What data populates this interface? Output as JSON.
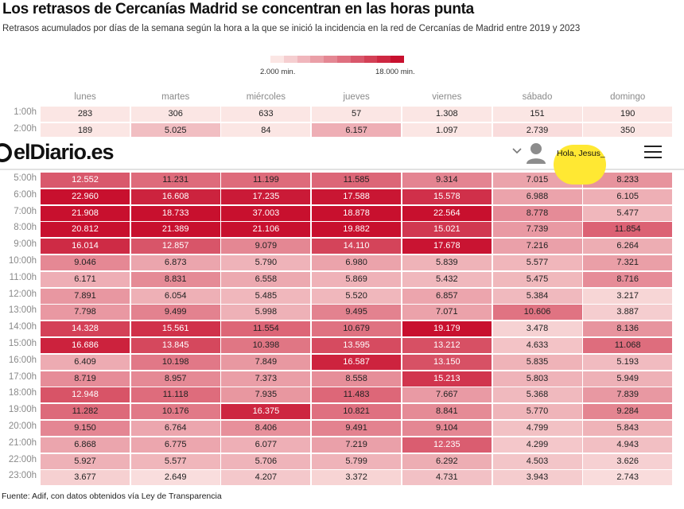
{
  "header": {
    "title": "Los retrasos de Cercanías Madrid se concentran en las horas punta",
    "subtitle": "Retrasos acumulados por días de la semana según la hora a la que se inició la incidencia en la red de Cercanías de Madrid entre 2019 y 2023"
  },
  "legend": {
    "min_label": "2.000 min.",
    "max_label": "18.000 min."
  },
  "chart_data": {
    "type": "heatmap",
    "columns": [
      "lunes",
      "martes",
      "miércoles",
      "jueves",
      "viernes",
      "sábado",
      "domingo"
    ],
    "rows": [
      {
        "hour": "1:00h",
        "values": [
          283,
          306,
          633,
          57,
          1308,
          151,
          190
        ]
      },
      {
        "hour": "2:00h",
        "values": [
          189,
          5025,
          84,
          6157,
          1097,
          2739,
          350
        ]
      },
      {
        "hour": "5:00h",
        "values": [
          12552,
          11231,
          11199,
          11585,
          9314,
          7015,
          8233
        ]
      },
      {
        "hour": "6:00h",
        "values": [
          22960,
          16608,
          17235,
          17588,
          15578,
          6988,
          6105
        ]
      },
      {
        "hour": "7:00h",
        "values": [
          21908,
          18733,
          37003,
          18878,
          22564,
          8778,
          5477
        ]
      },
      {
        "hour": "8:00h",
        "values": [
          20812,
          21389,
          21106,
          19882,
          15021,
          7739,
          11854
        ]
      },
      {
        "hour": "9:00h",
        "values": [
          16014,
          12857,
          9079,
          14110,
          17678,
          7216,
          6264
        ]
      },
      {
        "hour": "10:00h",
        "values": [
          9046,
          6873,
          5790,
          6980,
          5839,
          5577,
          7321
        ]
      },
      {
        "hour": "11:00h",
        "values": [
          6171,
          8831,
          6558,
          5869,
          5432,
          5475,
          8716
        ]
      },
      {
        "hour": "12:00h",
        "values": [
          7891,
          6054,
          5485,
          5520,
          6857,
          5384,
          3217
        ]
      },
      {
        "hour": "13:00h",
        "values": [
          7798,
          9499,
          5998,
          9495,
          7071,
          10606,
          3887
        ]
      },
      {
        "hour": "14:00h",
        "values": [
          14328,
          15561,
          11554,
          10679,
          19179,
          3478,
          8136
        ]
      },
      {
        "hour": "15:00h",
        "values": [
          16686,
          13845,
          10398,
          13595,
          13212,
          4633,
          11068
        ]
      },
      {
        "hour": "16:00h",
        "values": [
          6409,
          10198,
          7849,
          16587,
          13150,
          5835,
          5193
        ]
      },
      {
        "hour": "17:00h",
        "values": [
          8719,
          8957,
          7373,
          8558,
          15213,
          5803,
          5949
        ]
      },
      {
        "hour": "18:00h",
        "values": [
          12948,
          11118,
          7935,
          11483,
          7667,
          5368,
          7839
        ]
      },
      {
        "hour": "19:00h",
        "values": [
          11282,
          10176,
          16375,
          10821,
          8841,
          5770,
          9284
        ]
      },
      {
        "hour": "20:00h",
        "values": [
          9150,
          6764,
          8406,
          9491,
          9104,
          4799,
          5843
        ]
      },
      {
        "hour": "21:00h",
        "values": [
          6868,
          6775,
          6077,
          7219,
          12235,
          4299,
          4943
        ]
      },
      {
        "hour": "22:00h",
        "values": [
          5927,
          5577,
          5706,
          5799,
          6292,
          4503,
          3626
        ]
      },
      {
        "hour": "23:00h",
        "values": [
          3677,
          2649,
          4207,
          3372,
          4731,
          3943,
          2743
        ]
      }
    ],
    "scale": {
      "min": 2000,
      "max": 18000
    },
    "colors": {
      "low": "#fbe6e4",
      "high": "#c8102e"
    }
  },
  "source": "Fuente: Adif, con datos obtenidos vía Ley de Transparencia",
  "navbar": {
    "logo_text": "elDiario.es",
    "user_label": "Hola, Jesus_",
    "icons": [
      "chevron-down-icon",
      "user-avatar-icon",
      "menu-icon"
    ]
  }
}
